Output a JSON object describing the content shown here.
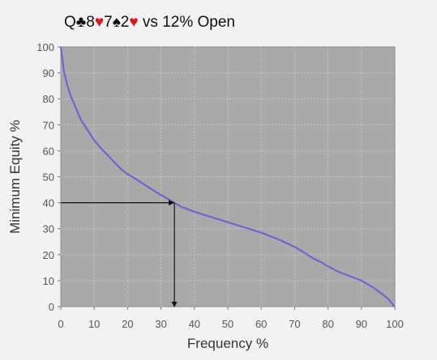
{
  "header": {
    "title_parts": [
      {
        "text": "Q",
        "color": "#111111"
      },
      {
        "text": "♣",
        "color": "#111111"
      },
      {
        "text": "8",
        "color": "#111111"
      },
      {
        "text": "♥",
        "color": "#e0151b"
      },
      {
        "text": "7",
        "color": "#111111"
      },
      {
        "text": "♠",
        "color": "#111111"
      },
      {
        "text": "2",
        "color": "#111111"
      },
      {
        "text": "♥",
        "color": "#e0151b"
      },
      {
        "text": " vs 12% Open",
        "color": "#111111"
      }
    ]
  },
  "chart_data": {
    "type": "line",
    "title": "Q♣8♥7♠2♥ vs 12% Open",
    "xlabel": "Frequency %",
    "ylabel": "Minimum Equity %",
    "xlim": [
      0,
      100
    ],
    "ylim": [
      0,
      100
    ],
    "xticks": [
      "0",
      "10",
      "20",
      "30",
      "40",
      "50",
      "60",
      "70",
      "80",
      "90",
      "100"
    ],
    "yticks": [
      "0",
      "10",
      "20",
      "30",
      "40",
      "50",
      "60",
      "70",
      "80",
      "90",
      "100"
    ],
    "grid": true,
    "colors": {
      "line": "#6a5fd8",
      "plot_bg": "#a9a9a9",
      "grid": "#c8c8c8",
      "marker": "#111111"
    },
    "series": [
      {
        "x": [
          0,
          0.5,
          1,
          2,
          3,
          4,
          5,
          6,
          8,
          10,
          12,
          15,
          18,
          20,
          22,
          25,
          28,
          30,
          32,
          34,
          36,
          40,
          45,
          50,
          55,
          60,
          65,
          70,
          72,
          75,
          78,
          80,
          83,
          85,
          88,
          90,
          92,
          94,
          96,
          97,
          98,
          99,
          99.5,
          100
        ],
        "y": [
          100,
          95,
          90,
          85,
          81,
          78,
          75,
          72,
          68,
          64,
          61,
          57,
          53,
          51,
          49.5,
          47,
          44.5,
          43,
          41.5,
          40,
          38.5,
          36.5,
          34.5,
          32.5,
          30.5,
          28.5,
          26,
          23,
          21.5,
          19,
          17,
          15.5,
          13.5,
          12.5,
          11,
          10,
          8.5,
          7,
          5,
          4,
          3,
          1.5,
          0.5,
          0
        ]
      }
    ],
    "annotation": {
      "x": 34,
      "y": 40
    }
  }
}
